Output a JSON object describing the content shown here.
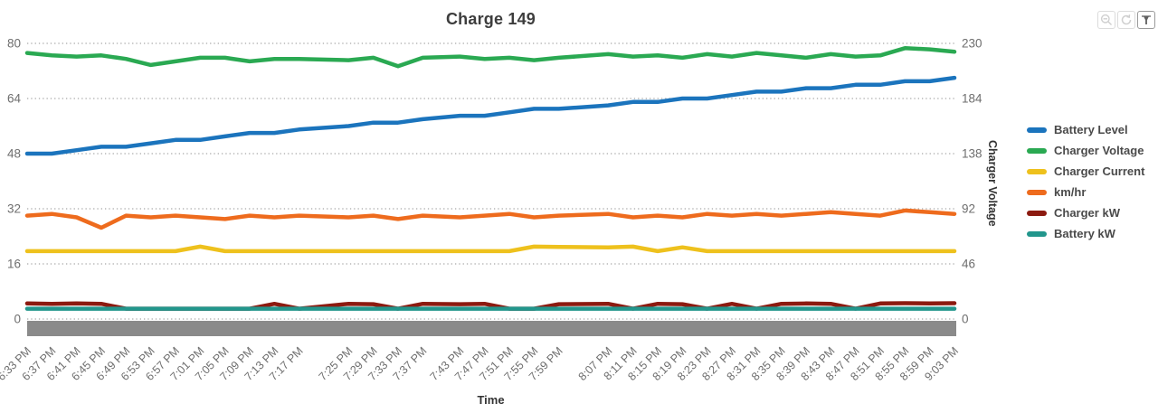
{
  "title": "Charge 149",
  "toolbar": {
    "buttons": [
      "zoom-out",
      "reset-zoom",
      "filter-selector"
    ]
  },
  "colors": {
    "grid": "#b5b5b5",
    "tick_label": "#6e6e6e",
    "axis_title": "#333333",
    "scrollbar": "#8a8a8a"
  },
  "chart_data": {
    "type": "line",
    "title": "Charge 149",
    "xlabel": "Time",
    "ylabel_right": "Charger Voltage",
    "grid": "dotted",
    "legend_position": "right",
    "left_axis": {
      "min": 0,
      "max": 80,
      "ticks": [
        80,
        64,
        48,
        32,
        16,
        0
      ]
    },
    "right_axis": {
      "min": 0,
      "max": 230,
      "ticks": [
        230,
        184,
        138,
        92,
        46,
        0
      ]
    },
    "x_labels": [
      "6:33 PM",
      "6:37 PM",
      "6:41 PM",
      "6:45 PM",
      "6:49 PM",
      "6:53 PM",
      "6:57 PM",
      "7:01 PM",
      "7:05 PM",
      "7:09 PM",
      "7:13 PM",
      "7:17 PM",
      "7:25 PM",
      "7:29 PM",
      "7:33 PM",
      "7:37 PM",
      "7:43 PM",
      "7:47 PM",
      "7:51 PM",
      "7:55 PM",
      "7:59 PM",
      "8:07 PM",
      "8:11 PM",
      "8:15 PM",
      "8:19 PM",
      "8:23 PM",
      "8:27 PM",
      "8:31 PM",
      "8:35 PM",
      "8:39 PM",
      "8:43 PM",
      "8:47 PM",
      "8:51 PM",
      "8:55 PM",
      "8:59 PM",
      "9:03 PM"
    ],
    "x_minutes": [
      0,
      4,
      8,
      12,
      16,
      20,
      24,
      28,
      32,
      36,
      40,
      44,
      52,
      56,
      60,
      64,
      70,
      74,
      78,
      82,
      86,
      94,
      98,
      102,
      106,
      110,
      114,
      118,
      122,
      126,
      130,
      134,
      138,
      142,
      146,
      150
    ],
    "x_span_minutes": 150,
    "series": [
      {
        "name": "Battery Level",
        "color": "#1b74bd",
        "axis": "left",
        "values": [
          48,
          48,
          49,
          50,
          50,
          51,
          52,
          52,
          53,
          54,
          54,
          55,
          56,
          57,
          57,
          58,
          59,
          59,
          60,
          61,
          61,
          62,
          63,
          63,
          64,
          64,
          65,
          66,
          66,
          67,
          67,
          68,
          68,
          69,
          69,
          70
        ]
      },
      {
        "name": "Charger Voltage",
        "color": "#2aa952",
        "axis": "right",
        "values": [
          222,
          220,
          219,
          220,
          217,
          212,
          215,
          218,
          218,
          215,
          217,
          217,
          216,
          218,
          211,
          218,
          219,
          217,
          218,
          216,
          218,
          221,
          219,
          220,
          218,
          221,
          219,
          222,
          220,
          218,
          221,
          219,
          220,
          226,
          225,
          223
        ]
      },
      {
        "name": "Charger Current",
        "color": "#eec11d",
        "axis": "left",
        "values": [
          19.7,
          19.7,
          19.7,
          19.7,
          19.7,
          19.7,
          19.7,
          21,
          19.7,
          19.7,
          19.7,
          19.7,
          19.7,
          19.7,
          19.7,
          19.7,
          19.7,
          19.7,
          19.7,
          21,
          20.9,
          20.8,
          21,
          19.7,
          20.8,
          19.7,
          19.7,
          19.7,
          19.7,
          19.7,
          19.7,
          19.7,
          19.7,
          19.7,
          19.7,
          19.7
        ]
      },
      {
        "name": "km/hr",
        "color": "#ee6b1d",
        "axis": "left",
        "values": [
          30,
          30.5,
          29.5,
          26.5,
          30,
          29.5,
          30,
          29.5,
          29,
          30,
          29.5,
          30,
          29.5,
          30,
          29,
          30,
          29.5,
          30,
          30.5,
          29.5,
          30,
          30.5,
          29.5,
          30,
          29.5,
          30.5,
          30,
          30.5,
          30,
          30.5,
          31,
          30.5,
          30,
          31.5,
          31,
          30.5
        ]
      },
      {
        "name": "Charger kW",
        "color": "#8c1a10",
        "axis": "left",
        "values": [
          4.5,
          4.4,
          4.5,
          4.4,
          3,
          3,
          3,
          3,
          3,
          3,
          4.4,
          3,
          4.4,
          4.3,
          3,
          4.4,
          4.3,
          4.4,
          3,
          3,
          4.3,
          4.4,
          3,
          4.4,
          4.3,
          3,
          4.4,
          3,
          4.4,
          4.5,
          4.4,
          3,
          4.5,
          4.6,
          4.5,
          4.6
        ]
      },
      {
        "name": "Battery kW",
        "color": "#22968c",
        "axis": "left",
        "values": [
          3,
          3,
          3,
          3,
          3,
          3,
          3,
          3,
          3,
          3,
          3,
          3,
          3,
          3,
          3,
          3,
          3,
          3,
          3,
          3,
          3,
          3,
          3,
          3,
          3,
          3,
          3,
          3,
          3,
          3,
          3,
          3,
          3,
          3,
          3,
          3
        ]
      }
    ]
  }
}
